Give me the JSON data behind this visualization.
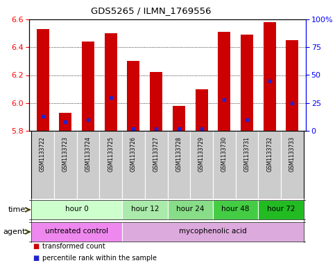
{
  "title": "GDS5265 / ILMN_1769556",
  "samples": [
    "GSM1133722",
    "GSM1133723",
    "GSM1133724",
    "GSM1133725",
    "GSM1133726",
    "GSM1133727",
    "GSM1133728",
    "GSM1133729",
    "GSM1133730",
    "GSM1133731",
    "GSM1133732",
    "GSM1133733"
  ],
  "transformed_count": [
    6.53,
    5.93,
    6.44,
    6.5,
    6.3,
    6.22,
    5.98,
    6.1,
    6.51,
    6.49,
    6.58,
    6.45
  ],
  "percentile_rank": [
    13,
    8,
    10,
    30,
    2,
    2,
    2,
    2,
    28,
    10,
    45,
    25
  ],
  "ylim": [
    5.8,
    6.6
  ],
  "y_ticks_left": [
    5.8,
    6.0,
    6.2,
    6.4,
    6.6
  ],
  "y_ticks_right": [
    0,
    25,
    50,
    75,
    100
  ],
  "bar_color": "#cc0000",
  "dot_color": "#2222cc",
  "baseline": 5.8,
  "time_groups": [
    {
      "label": "hour 0",
      "start": 0,
      "end": 4,
      "color": "#ccffcc"
    },
    {
      "label": "hour 12",
      "start": 4,
      "end": 6,
      "color": "#aaeaaa"
    },
    {
      "label": "hour 24",
      "start": 6,
      "end": 8,
      "color": "#88dd88"
    },
    {
      "label": "hour 48",
      "start": 8,
      "end": 10,
      "color": "#44cc44"
    },
    {
      "label": "hour 72",
      "start": 10,
      "end": 12,
      "color": "#22bb22"
    }
  ],
  "agent_groups": [
    {
      "label": "untreated control",
      "start": 0,
      "end": 4,
      "color": "#ee88ee"
    },
    {
      "label": "mycophenolic acid",
      "start": 4,
      "end": 12,
      "color": "#ddaadd"
    }
  ],
  "legend_items": [
    {
      "color": "#cc0000",
      "label": "transformed count"
    },
    {
      "color": "#2222cc",
      "label": "percentile rank within the sample"
    }
  ]
}
